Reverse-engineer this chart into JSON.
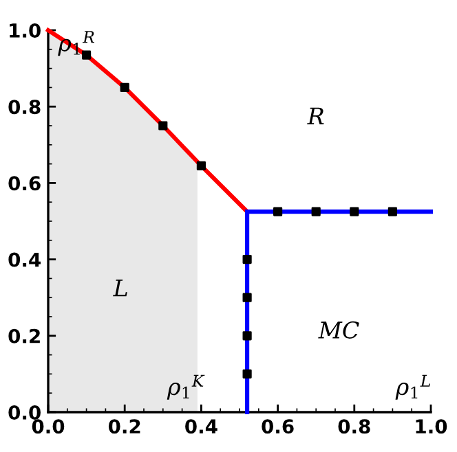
{
  "chart_data": {
    "type": "line",
    "series": [
      {
        "type": "area",
        "color": "#e8e8e8",
        "x": [
          0,
          0.1,
          0.2,
          0.3,
          0.39
        ],
        "values": [
          1,
          0.935,
          0.85,
          0.75,
          0.66
        ]
      },
      {
        "color": "#ff0000",
        "x": [
          0,
          0.1,
          0.2,
          0.3,
          0.4,
          0.52
        ],
        "values": [
          1,
          0.935,
          0.85,
          0.75,
          0.645,
          0.525
        ]
      },
      {
        "color": "#0000ff",
        "x": [
          0.52,
          1.0
        ],
        "values": [
          0.525,
          0.525
        ]
      },
      {
        "color": "#0000ff",
        "x": [
          0.52,
          0.52
        ],
        "values": [
          0,
          0.525
        ]
      },
      {
        "type": "scatter",
        "color": "#000000",
        "marker": "square",
        "x": [
          0.1,
          0.2,
          0.3,
          0.4,
          0.6,
          0.7,
          0.8,
          0.9,
          0.52,
          0.52,
          0.52,
          0.52
        ],
        "values": [
          0.935,
          0.85,
          0.75,
          0.645,
          0.525,
          0.525,
          0.525,
          0.525,
          0.1,
          0.2,
          0.3,
          0.4
        ]
      }
    ],
    "xlim": [
      0,
      1
    ],
    "ylim": [
      0,
      1
    ],
    "xticks": [
      {
        "value": 0,
        "label": "0.0"
      },
      {
        "value": 0.2,
        "label": "0.2"
      },
      {
        "value": 0.4,
        "label": "0.4"
      },
      {
        "value": 0.6,
        "label": "0.6"
      },
      {
        "value": 0.8,
        "label": "0.8"
      },
      {
        "value": 1,
        "label": "1.0"
      }
    ],
    "yticks": [
      {
        "value": 0,
        "label": "0.0"
      },
      {
        "value": 0.2,
        "label": "0.2"
      },
      {
        "value": 0.4,
        "label": "0.4"
      },
      {
        "value": 0.6,
        "label": "0.6"
      },
      {
        "value": 0.8,
        "label": "0.8"
      },
      {
        "value": 1,
        "label": "1.0"
      }
    ],
    "annotations": [
      "ρ$_{1}$$^{R}$",
      "R",
      "L",
      "MC",
      "ρ$_{1}$$^{K}$",
      "ρ$_{1}$$^{L}$"
    ]
  }
}
